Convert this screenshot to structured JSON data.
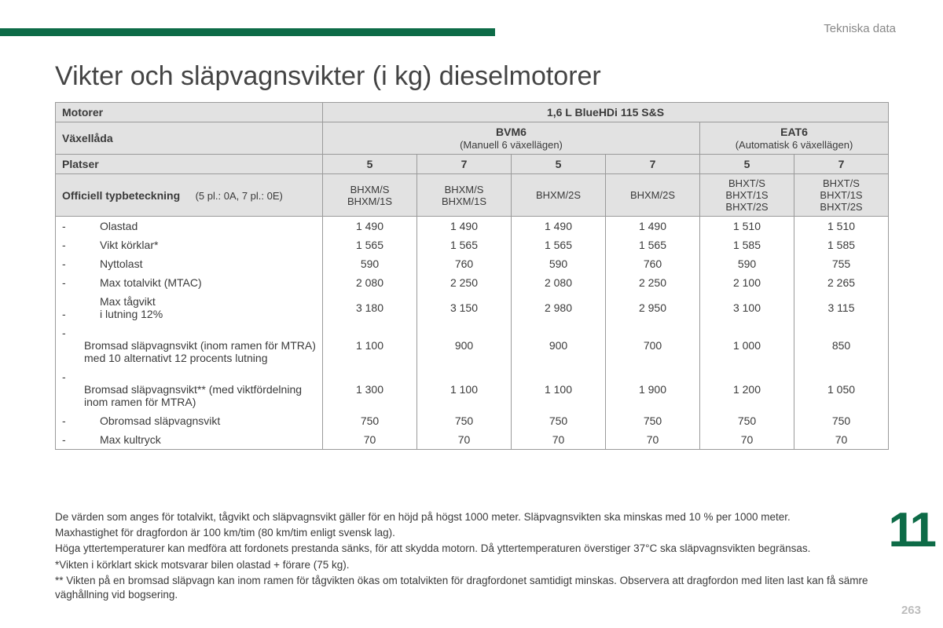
{
  "colors": {
    "accent": "#0d6b47",
    "header_bg": "#e2e2e2",
    "border": "#9a9a9a",
    "muted": "#888888",
    "pagenum": "#bdbdbd"
  },
  "header_right": "Tekniska data",
  "title": "Vikter och släpvagnsvikter (i kg) dieselmotorer",
  "chapter_number": "11",
  "page_number": "263",
  "table": {
    "motorer_label": "Motorer",
    "engine": "1,6 L BlueHDi 115 S&S",
    "vaxellada_label": "Växellåda",
    "gearboxes": [
      {
        "name": "BVM6",
        "sub": "(Manuell 6 växellägen)",
        "span": 4
      },
      {
        "name": "EAT6",
        "sub": "(Automatisk 6 växellägen)",
        "span": 2
      }
    ],
    "platser_label": "Platser",
    "seats": [
      "5",
      "7",
      "5",
      "7",
      "5",
      "7"
    ],
    "typedes_label": "Officiell typbeteckning",
    "typedes_note": "(5 pl.: 0A, 7 pl.: 0E)",
    "codes": [
      "BHXM/S\nBHXM/1S",
      "BHXM/S\nBHXM/1S",
      "BHXM/2S",
      "BHXM/2S",
      "BHXT/S\nBHXT/1S\nBHXT/2S",
      "BHXT/S\nBHXT/1S\nBHXT/2S"
    ],
    "rows": [
      {
        "label": "Olastad",
        "vals": [
          "1 490",
          "1 490",
          "1 490",
          "1 490",
          "1 510",
          "1 510"
        ]
      },
      {
        "label": "Vikt körklar*",
        "vals": [
          "1 565",
          "1 565",
          "1 565",
          "1 565",
          "1 585",
          "1 585"
        ]
      },
      {
        "label": "Nyttolast",
        "vals": [
          "590",
          "760",
          "590",
          "760",
          "590",
          "755"
        ]
      },
      {
        "label": "Max totalvikt (MTAC)",
        "vals": [
          "2 080",
          "2 250",
          "2 080",
          "2 250",
          "2 100",
          "2 265"
        ]
      },
      {
        "label": "Max tågvikt\ni lutning 12%",
        "vals": [
          "3 180",
          "3 150",
          "2 980",
          "2 950",
          "3 100",
          "3 115"
        ]
      },
      {
        "label": "Bromsad släpvagnsvikt (inom ramen för MTRA)\nmed 10 alternativt 12 procents lutning",
        "vals": [
          "1 100",
          "900",
          "900",
          "700",
          "1 000",
          "850"
        ]
      },
      {
        "label": "Bromsad släpvagnsvikt** (med viktfördelning inom ramen för MTRA)",
        "vals": [
          "1 300",
          "1 100",
          "1 100",
          "1 900",
          "1 200",
          "1 050"
        ]
      },
      {
        "label": "Obromsad släpvagnsvikt",
        "vals": [
          "750",
          "750",
          "750",
          "750",
          "750",
          "750"
        ]
      },
      {
        "label": "Max kultryck",
        "vals": [
          "70",
          "70",
          "70",
          "70",
          "70",
          "70"
        ]
      }
    ]
  },
  "notes": [
    "De värden som anges för totalvikt, tågvikt och släpvagnsvikt gäller för en höjd på högst 1000 meter. Släpvagnsvikten ska minskas med 10 % per 1000 meter.",
    "Maxhastighet för dragfordon är 100 km/tim (80 km/tim enligt svensk lag).",
    "Höga yttertemperaturer kan medföra att fordonets prestanda sänks, för att skydda motorn. Då yttertemperaturen överstiger 37°C ska släpvagnsvikten begränsas.",
    "*Vikten i körklart skick motsvarar bilen olastad + förare (75 kg).",
    "** Vikten på en bromsad släpvagn kan inom ramen för tågvikten ökas om totalvikten för dragfordonet samtidigt minskas. Observera att dragfordon med liten last kan få sämre väghållning vid bogsering."
  ]
}
